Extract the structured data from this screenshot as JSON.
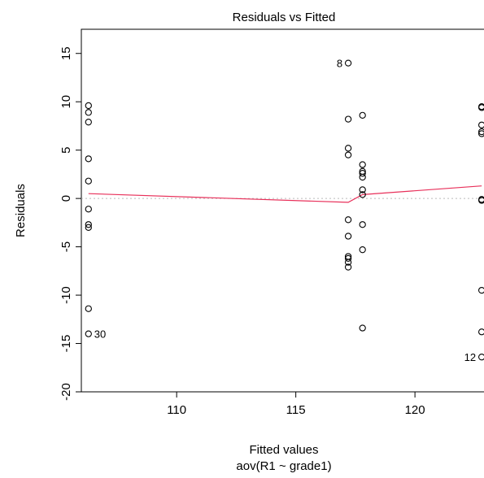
{
  "chart_data": {
    "type": "scatter",
    "title": "Residuals vs Fitted",
    "xlabel": "Fitted values",
    "xlabel_sub": "aov(R1 ~ grade1)",
    "ylabel": "Residuals",
    "xlim": [
      106.0,
      123.0
    ],
    "ylim": [
      -20.0,
      17.5
    ],
    "x_ticks": [
      110,
      115,
      120
    ],
    "y_ticks": [
      -20,
      -15,
      -10,
      -5,
      0,
      5,
      10,
      15
    ],
    "grid": false,
    "legend": "none",
    "colors": {
      "points": "#000000",
      "smooth": "#e8305a",
      "zero_line": "#bbbbbb"
    },
    "points": [
      {
        "x": 106.3,
        "y": 9.6
      },
      {
        "x": 106.3,
        "y": 8.9
      },
      {
        "x": 106.3,
        "y": 7.9
      },
      {
        "x": 106.3,
        "y": 4.1
      },
      {
        "x": 106.3,
        "y": 1.8
      },
      {
        "x": 106.3,
        "y": -1.1
      },
      {
        "x": 106.3,
        "y": -2.7
      },
      {
        "x": 106.3,
        "y": -3.0
      },
      {
        "x": 106.3,
        "y": -11.4
      },
      {
        "x": 106.3,
        "y": -14.0
      },
      {
        "x": 117.2,
        "y": 14.0
      },
      {
        "x": 117.2,
        "y": 8.2
      },
      {
        "x": 117.2,
        "y": 5.2
      },
      {
        "x": 117.2,
        "y": 4.5
      },
      {
        "x": 117.2,
        "y": -2.2
      },
      {
        "x": 117.2,
        "y": -3.9
      },
      {
        "x": 117.2,
        "y": -6.0
      },
      {
        "x": 117.2,
        "y": -6.2
      },
      {
        "x": 117.2,
        "y": -6.6
      },
      {
        "x": 117.2,
        "y": -7.1
      },
      {
        "x": 117.8,
        "y": 8.6
      },
      {
        "x": 117.8,
        "y": 3.5
      },
      {
        "x": 117.8,
        "y": 2.8
      },
      {
        "x": 117.8,
        "y": 2.6
      },
      {
        "x": 117.8,
        "y": 2.2
      },
      {
        "x": 117.8,
        "y": 0.9
      },
      {
        "x": 117.8,
        "y": 0.4
      },
      {
        "x": 117.8,
        "y": -2.7
      },
      {
        "x": 117.8,
        "y": -5.3
      },
      {
        "x": 117.8,
        "y": -13.4
      },
      {
        "x": 122.8,
        "y": 9.5
      },
      {
        "x": 122.8,
        "y": 9.4
      },
      {
        "x": 122.8,
        "y": 7.6
      },
      {
        "x": 122.8,
        "y": 6.9
      },
      {
        "x": 122.8,
        "y": 6.7
      },
      {
        "x": 122.8,
        "y": -0.1
      },
      {
        "x": 122.8,
        "y": -0.2
      },
      {
        "x": 122.8,
        "y": -9.5
      },
      {
        "x": 122.8,
        "y": -13.8
      },
      {
        "x": 122.8,
        "y": -16.4
      }
    ],
    "smooth_line": [
      {
        "x": 106.3,
        "y": 0.5
      },
      {
        "x": 117.2,
        "y": -0.4
      },
      {
        "x": 117.8,
        "y": 0.4
      },
      {
        "x": 122.8,
        "y": 1.3
      }
    ],
    "annotations": [
      {
        "text": "8",
        "x": 117.2,
        "y": 14.0,
        "side": "left"
      },
      {
        "text": "30",
        "x": 106.3,
        "y": -14.0,
        "side": "right"
      },
      {
        "text": "12",
        "x": 122.8,
        "y": -16.4,
        "side": "left"
      }
    ]
  }
}
